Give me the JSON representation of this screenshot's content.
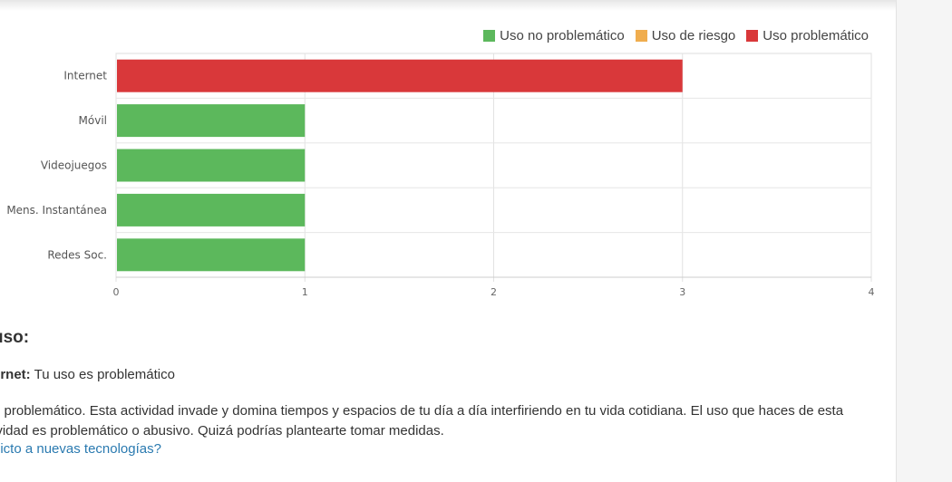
{
  "chart_data": {
    "type": "bar",
    "orientation": "horizontal",
    "categories": [
      "Internet",
      "Móvil",
      "Videojuegos",
      "Mens. Instantánea",
      "Redes Soc."
    ],
    "values": [
      3,
      1,
      1,
      1,
      1
    ],
    "value_status": [
      "problematico",
      "no_problematico",
      "no_problematico",
      "no_problematico",
      "no_problematico"
    ],
    "legend": [
      {
        "key": "no_problematico",
        "label": "Uso no problemático",
        "color": "#5cb85c"
      },
      {
        "key": "riesgo",
        "label": "Uso de riesgo",
        "color": "#f0ad4e"
      },
      {
        "key": "problematico",
        "label": "Uso problemático",
        "color": "#d9383a"
      }
    ],
    "xlim": [
      0,
      4
    ],
    "xticks": [
      "0",
      "1",
      "2",
      "3",
      "4"
    ],
    "grid": true,
    "legend_placement": "top-right"
  },
  "result": {
    "section_title": "uso:",
    "item_label": "ernet:",
    "item_value": "Tu uso es problemático",
    "description_line1": "o problemático. Esta actividad invade y domina tiempos y espacios de tu día a día interfiriendo en tu vida cotidiana. El uso que haces de esta",
    "description_line2": "ividad es problemático o abusivo. Quizá podrías plantearte tomar medidas.",
    "link_text": "dicto a nuevas tecnologías?"
  }
}
